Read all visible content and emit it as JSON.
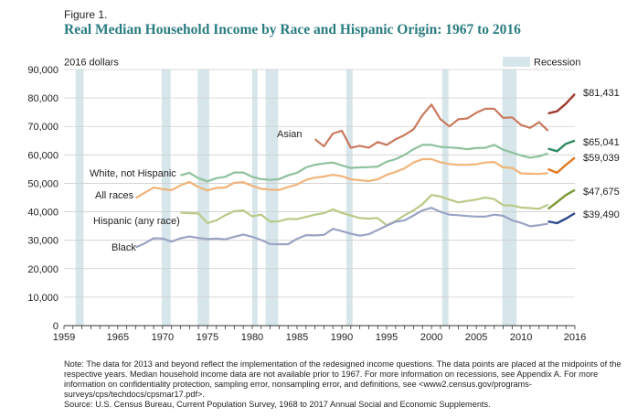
{
  "figure_label": "Figure 1.",
  "note": "Note: The data for 2013 and beyond reflect the implementation of the redesigned income questions. The data points are placed at the midpoints of the respective years. Median household income data are not available prior to 1967. For more information on recessions, see Appendix A. For more information on confidentiality protection, sampling error, nonsampling error, and definitions, see <www2.census.gov/programs-surveys/cps/techdocs/cpsmar17.pdf>.",
  "source": "Source: U.S. Census Bureau, Current Population Survey, 1968 to 2017 Annual Social and Economic Supplements.",
  "chart_data": {
    "type": "line",
    "title": "Real Median Household Income by Race and Hispanic Origin: 1967 to 2016",
    "ylabel": "2016 dollars",
    "xlabel": "",
    "xlim": [
      1959,
      2016
    ],
    "ylim": [
      0,
      90000
    ],
    "x_ticks": [
      1959,
      1965,
      1970,
      1975,
      1980,
      1985,
      1990,
      1995,
      2000,
      2005,
      2010,
      2016
    ],
    "x_tick_labels": [
      "1959",
      "1965",
      "1970",
      "1975",
      "1980",
      "1985",
      "1990",
      "1995",
      "2000",
      "2005",
      "2010",
      "2016"
    ],
    "y_ticks": [
      0,
      10000,
      20000,
      30000,
      40000,
      50000,
      60000,
      70000,
      80000,
      90000
    ],
    "y_tick_labels": [
      "0",
      "10,000",
      "20,000",
      "30,000",
      "40,000",
      "50,000",
      "60,000",
      "70,000",
      "80,000",
      "90,000"
    ],
    "grid": true,
    "recession_label": "Recession",
    "recessions": [
      [
        1960.3,
        1961.2
      ],
      [
        1969.9,
        1970.9
      ],
      [
        1973.9,
        1975.2
      ],
      [
        1980.0,
        1980.6
      ],
      [
        1981.5,
        1982.9
      ],
      [
        1990.5,
        1991.2
      ],
      [
        2001.2,
        2001.9
      ],
      [
        2007.9,
        2009.5
      ]
    ],
    "series": [
      {
        "name": "Asian",
        "end_label": "$81,431",
        "color": "#c97a5e",
        "color_new": "#a03a30",
        "x": [
          1987,
          1988,
          1989,
          1990,
          1991,
          1992,
          1993,
          1994,
          1995,
          1996,
          1997,
          1998,
          1999,
          2000,
          2001,
          2002,
          2003,
          2004,
          2005,
          2006,
          2007,
          2008,
          2009,
          2010,
          2011,
          2012,
          2013
        ],
        "values": [
          65500,
          63000,
          67500,
          68500,
          62500,
          63200,
          62500,
          64500,
          63500,
          65500,
          67000,
          69000,
          74000,
          77700,
          72500,
          70000,
          72500,
          72800,
          74800,
          76200,
          76200,
          73000,
          73200,
          70500,
          69500,
          71500,
          68500
        ],
        "x_new": [
          2013,
          2014,
          2015,
          2016
        ],
        "values_new": [
          74600,
          75300,
          78000,
          81431
        ]
      },
      {
        "name": "White, not Hispanic",
        "end_label": "$65,041",
        "color": "#8fc19e",
        "color_new": "#2e8b63",
        "x": [
          1972,
          1973,
          1974,
          1975,
          1976,
          1977,
          1978,
          1979,
          1980,
          1981,
          1982,
          1983,
          1984,
          1985,
          1986,
          1987,
          1988,
          1989,
          1990,
          1991,
          1992,
          1993,
          1994,
          1995,
          1996,
          1997,
          1998,
          1999,
          2000,
          2001,
          2002,
          2003,
          2004,
          2005,
          2006,
          2007,
          2008,
          2009,
          2010,
          2011,
          2012,
          2013
        ],
        "values": [
          52800,
          53700,
          51800,
          50700,
          51800,
          52300,
          53800,
          53800,
          52300,
          51500,
          51200,
          51500,
          52800,
          53700,
          55600,
          56500,
          57000,
          57300,
          56300,
          55400,
          55600,
          55700,
          55900,
          57600,
          58500,
          60000,
          62000,
          63500,
          63500,
          62800,
          62600,
          62400,
          62000,
          62400,
          62500,
          63500,
          61800,
          60800,
          59800,
          59000,
          59500,
          60500
        ],
        "x_new": [
          2013,
          2014,
          2015,
          2016
        ],
        "values_new": [
          62200,
          61300,
          63900,
          65041
        ]
      },
      {
        "name": "All races",
        "end_label": "$59,039",
        "color": "#f0b47a",
        "color_new": "#e07a22",
        "x": [
          1967,
          1968,
          1969,
          1970,
          1971,
          1972,
          1973,
          1974,
          1975,
          1976,
          1977,
          1978,
          1979,
          1980,
          1981,
          1982,
          1983,
          1984,
          1985,
          1986,
          1987,
          1988,
          1989,
          1990,
          1991,
          1992,
          1993,
          1994,
          1995,
          1996,
          1997,
          1998,
          1999,
          2000,
          2001,
          2002,
          2003,
          2004,
          2005,
          2006,
          2007,
          2008,
          2009,
          2010,
          2011,
          2012,
          2013
        ],
        "values": [
          44800,
          46700,
          48500,
          48000,
          47600,
          49300,
          50500,
          48700,
          47500,
          48400,
          48500,
          50200,
          50400,
          49100,
          48100,
          47800,
          47700,
          48700,
          49600,
          51200,
          52000,
          52400,
          53000,
          52500,
          51400,
          51100,
          50800,
          51400,
          53000,
          54000,
          55300,
          57300,
          58500,
          58500,
          57400,
          56800,
          56500,
          56500,
          56700,
          57300,
          57500,
          55600,
          55400,
          53500,
          53400,
          53300,
          53600
        ],
        "x_new": [
          2013,
          2014,
          2015,
          2016
        ],
        "values_new": [
          55000,
          53700,
          56500,
          59039
        ]
      },
      {
        "name": "Hispanic (any race)",
        "end_label": "$47,675",
        "color": "#b9ca87",
        "color_new": "#7d9a35",
        "x": [
          1972,
          1973,
          1974,
          1975,
          1976,
          1977,
          1978,
          1979,
          1980,
          1981,
          1982,
          1983,
          1984,
          1985,
          1986,
          1987,
          1988,
          1989,
          1990,
          1991,
          1992,
          1993,
          1994,
          1995,
          1996,
          1997,
          1998,
          1999,
          2000,
          2001,
          2002,
          2003,
          2004,
          2005,
          2006,
          2007,
          2008,
          2009,
          2010,
          2011,
          2012,
          2013
        ],
        "values": [
          39700,
          39500,
          39400,
          36000,
          37000,
          38800,
          40200,
          40500,
          38400,
          39000,
          36500,
          36700,
          37500,
          37400,
          38200,
          39000,
          39500,
          40900,
          39600,
          38700,
          37800,
          37600,
          37800,
          35300,
          36800,
          38800,
          40500,
          42700,
          45900,
          45400,
          44300,
          43300,
          43800,
          44300,
          45000,
          44500,
          42300,
          42200,
          41500,
          41300,
          41000,
          42500
        ],
        "x_new": [
          2013,
          2014,
          2015,
          2016
        ],
        "values_new": [
          41000,
          43400,
          45900,
          47675
        ]
      },
      {
        "name": "Black",
        "end_label": "$39,490",
        "color": "#9aa3c4",
        "color_new": "#2f4a8a",
        "x": [
          1967,
          1968,
          1969,
          1970,
          1971,
          1972,
          1973,
          1974,
          1975,
          1976,
          1977,
          1978,
          1979,
          1980,
          1981,
          1982,
          1983,
          1984,
          1985,
          1986,
          1987,
          1988,
          1989,
          1990,
          1991,
          1992,
          1993,
          1994,
          1995,
          1996,
          1997,
          1998,
          1999,
          2000,
          2001,
          2002,
          2003,
          2004,
          2005,
          2006,
          2007,
          2008,
          2009,
          2010,
          2011,
          2012,
          2013
        ],
        "values": [
          27500,
          28900,
          30700,
          30600,
          29500,
          30700,
          31300,
          30800,
          30400,
          30600,
          30300,
          31200,
          32000,
          31200,
          30100,
          28700,
          28600,
          28600,
          30500,
          31800,
          31700,
          31900,
          34000,
          33200,
          32300,
          31600,
          32100,
          33600,
          35100,
          36500,
          37000,
          38700,
          40500,
          41400,
          40000,
          39000,
          38800,
          38500,
          38300,
          38300,
          39000,
          38600,
          37000,
          36100,
          34900,
          35300,
          35800
        ],
        "x_new": [
          2013,
          2014,
          2015,
          2016
        ],
        "values_new": [
          36600,
          36000,
          37600,
          39490
        ]
      }
    ]
  }
}
